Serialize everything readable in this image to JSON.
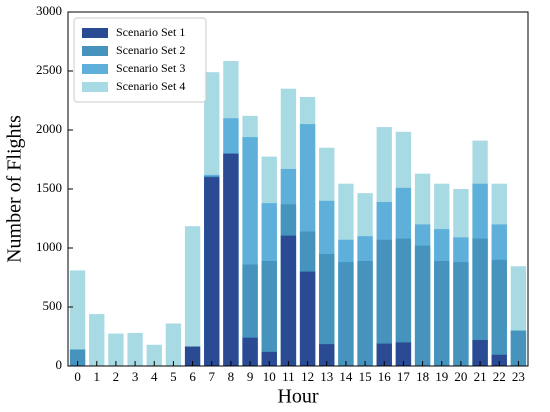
{
  "chart_data": {
    "type": "bar",
    "overlay": true,
    "x_label": "Hour",
    "y_label": "Number of Flights",
    "categories": [
      "0",
      "1",
      "2",
      "3",
      "4",
      "5",
      "6",
      "7",
      "8",
      "9",
      "10",
      "11",
      "12",
      "13",
      "14",
      "15",
      "16",
      "17",
      "18",
      "19",
      "20",
      "21",
      "22",
      "23"
    ],
    "series": [
      {
        "name": "Scenario Set 1",
        "color": "#2a4b94",
        "values": [
          0,
          0,
          0,
          0,
          0,
          0,
          165,
          1600,
          1800,
          240,
          120,
          1105,
          800,
          185,
          0,
          0,
          190,
          200,
          0,
          0,
          0,
          220,
          95,
          0
        ]
      },
      {
        "name": "Scenario Set 2",
        "color": "#4694bd",
        "values": [
          140,
          0,
          0,
          0,
          0,
          0,
          0,
          1610,
          1800,
          860,
          890,
          1370,
          1140,
          950,
          880,
          890,
          1070,
          1080,
          1020,
          890,
          880,
          1080,
          900,
          300
        ]
      },
      {
        "name": "Scenario Set 3",
        "color": "#5eb0da",
        "values": [
          0,
          0,
          0,
          0,
          0,
          0,
          0,
          1620,
          2100,
          1940,
          1380,
          1670,
          2050,
          1400,
          1070,
          1100,
          1390,
          1510,
          1200,
          1160,
          1090,
          1545,
          1200,
          300
        ]
      },
      {
        "name": "Scenario Set 4",
        "color": "#a8dae4",
        "values": [
          810,
          440,
          275,
          280,
          180,
          360,
          1185,
          2490,
          2585,
          2120,
          1775,
          2350,
          2280,
          1850,
          1545,
          1465,
          2025,
          1985,
          1630,
          1545,
          1500,
          1910,
          1545,
          845
        ]
      }
    ],
    "ylim": [
      0,
      3000
    ],
    "yticks": [
      0,
      500,
      1000,
      1500,
      2000,
      2500,
      3000
    ],
    "legend": "upper left"
  }
}
